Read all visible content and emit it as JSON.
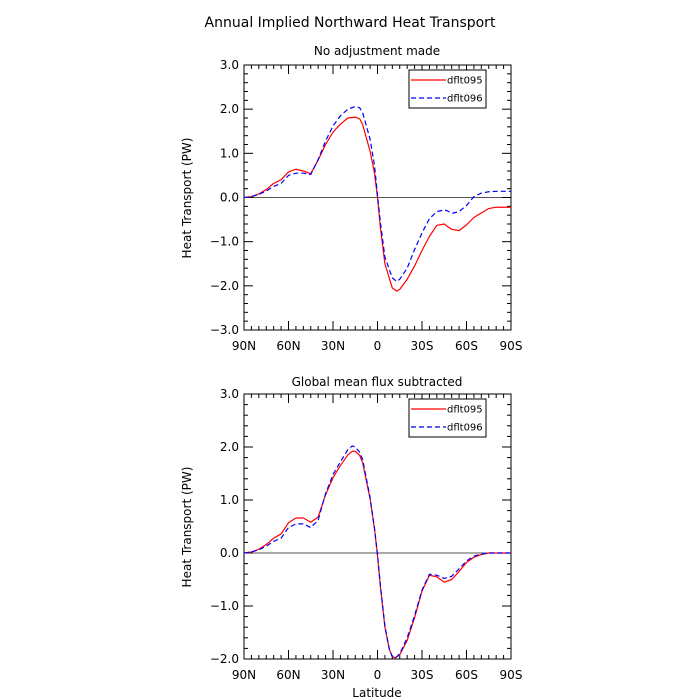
{
  "figure_title": "Annual Implied Northward Heat Transport",
  "x_axis_label": "Latitude",
  "colors": {
    "dflt095": "#ff0000",
    "dflt096": "#0000ff",
    "axis": "#000000",
    "zero_line": "#000000"
  },
  "chart_data": [
    {
      "type": "line",
      "title": "No adjustment made",
      "xlabel": "",
      "ylabel": "Heat Transport (PW)",
      "xlim": [
        90,
        -90
      ],
      "ylim": [
        -3,
        3
      ],
      "xticks": [
        90,
        60,
        30,
        0,
        -30,
        -60,
        -90
      ],
      "xtick_labels": [
        "90N",
        "60N",
        "30N",
        "0",
        "30S",
        "60S",
        "90S"
      ],
      "yticks": [
        3,
        2,
        1,
        0,
        -1,
        -2,
        -3
      ],
      "ytick_labels": [
        "3.0",
        "2.0",
        "1.0",
        "0.0",
        "−1.0",
        "−2.0",
        "−3.0"
      ],
      "legend": {
        "position": "top-right",
        "entries": [
          "dflt095",
          "dflt096"
        ]
      },
      "zero_line": true,
      "series": [
        {
          "name": "dflt095",
          "style": "solid",
          "x": [
            90,
            85,
            80,
            75,
            70,
            65,
            60,
            55,
            50,
            45,
            40,
            35,
            30,
            25,
            20,
            15,
            12,
            10,
            5,
            2,
            0,
            -2,
            -5,
            -10,
            -13,
            -15,
            -20,
            -25,
            -30,
            -35,
            -40,
            -45,
            -47,
            -50,
            -55,
            -60,
            -65,
            -70,
            -75,
            -80,
            -85,
            -90
          ],
          "y": [
            0,
            0.02,
            0.08,
            0.18,
            0.32,
            0.4,
            0.58,
            0.64,
            0.6,
            0.54,
            0.85,
            1.2,
            1.48,
            1.66,
            1.8,
            1.82,
            1.78,
            1.65,
            1.05,
            0.55,
            0.0,
            -0.7,
            -1.5,
            -2.05,
            -2.12,
            -2.08,
            -1.85,
            -1.55,
            -1.2,
            -0.88,
            -0.63,
            -0.6,
            -0.65,
            -0.72,
            -0.75,
            -0.62,
            -0.45,
            -0.35,
            -0.25,
            -0.22,
            -0.22,
            -0.22
          ]
        },
        {
          "name": "dflt096",
          "style": "dashed",
          "x": [
            90,
            85,
            80,
            75,
            70,
            65,
            60,
            55,
            50,
            45,
            40,
            35,
            30,
            25,
            20,
            15,
            12,
            10,
            5,
            2,
            0,
            -2,
            -5,
            -10,
            -13,
            -15,
            -20,
            -25,
            -30,
            -35,
            -40,
            -45,
            -47,
            -50,
            -55,
            -60,
            -65,
            -70,
            -75,
            -80,
            -85,
            -90
          ],
          "y": [
            0,
            0.02,
            0.07,
            0.15,
            0.25,
            0.32,
            0.5,
            0.55,
            0.55,
            0.52,
            0.86,
            1.28,
            1.62,
            1.85,
            2.0,
            2.06,
            2.03,
            1.92,
            1.32,
            0.72,
            0.05,
            -0.58,
            -1.35,
            -1.82,
            -1.9,
            -1.85,
            -1.6,
            -1.18,
            -0.8,
            -0.48,
            -0.32,
            -0.28,
            -0.3,
            -0.36,
            -0.32,
            -0.18,
            0.02,
            0.1,
            0.13,
            0.14,
            0.14,
            0.14
          ]
        }
      ]
    },
    {
      "type": "line",
      "title": "Global mean flux subtracted",
      "xlabel": "Latitude",
      "ylabel": "Heat Transport (PW)",
      "xlim": [
        90,
        -90
      ],
      "ylim": [
        -2,
        3
      ],
      "xticks": [
        90,
        60,
        30,
        0,
        -30,
        -60,
        -90
      ],
      "xtick_labels": [
        "90N",
        "60N",
        "30N",
        "0",
        "30S",
        "60S",
        "90S"
      ],
      "yticks": [
        3,
        2,
        1,
        0,
        -1,
        -2
      ],
      "ytick_labels": [
        "3.0",
        "2.0",
        "1.0",
        "0.0",
        "−1.0",
        "−2.0"
      ],
      "legend": {
        "position": "top-right",
        "entries": [
          "dflt095",
          "dflt096"
        ]
      },
      "zero_line": true,
      "series": [
        {
          "name": "dflt095",
          "style": "solid",
          "x": [
            90,
            85,
            80,
            75,
            70,
            65,
            60,
            55,
            50,
            45,
            40,
            35,
            30,
            25,
            20,
            17,
            15,
            12,
            10,
            5,
            2,
            0,
            -2,
            -5,
            -8,
            -10,
            -12,
            -15,
            -20,
            -25,
            -30,
            -35,
            -40,
            -45,
            -50,
            -55,
            -60,
            -65,
            -70,
            -75,
            -80,
            -85,
            -90
          ],
          "y": [
            0,
            0.02,
            0.07,
            0.16,
            0.28,
            0.36,
            0.57,
            0.66,
            0.66,
            0.58,
            0.68,
            1.1,
            1.42,
            1.65,
            1.85,
            1.92,
            1.92,
            1.84,
            1.7,
            1.02,
            0.45,
            -0.05,
            -0.65,
            -1.4,
            -1.82,
            -1.95,
            -1.98,
            -1.92,
            -1.65,
            -1.22,
            -0.72,
            -0.42,
            -0.45,
            -0.55,
            -0.5,
            -0.35,
            -0.18,
            -0.08,
            -0.03,
            0.0,
            0.0,
            0.0,
            0.0
          ]
        },
        {
          "name": "dflt096",
          "style": "dashed",
          "x": [
            90,
            85,
            80,
            75,
            70,
            65,
            60,
            55,
            50,
            45,
            40,
            35,
            30,
            25,
            20,
            17,
            15,
            12,
            10,
            5,
            2,
            0,
            -2,
            -5,
            -8,
            -10,
            -12,
            -15,
            -20,
            -25,
            -30,
            -35,
            -40,
            -45,
            -50,
            -55,
            -60,
            -65,
            -70,
            -75,
            -80,
            -85,
            -90
          ],
          "y": [
            0,
            0.02,
            0.06,
            0.13,
            0.22,
            0.28,
            0.48,
            0.55,
            0.55,
            0.48,
            0.62,
            1.12,
            1.48,
            1.72,
            1.95,
            2.02,
            2.0,
            1.9,
            1.76,
            1.05,
            0.46,
            -0.03,
            -0.62,
            -1.38,
            -1.82,
            -1.96,
            -1.98,
            -1.9,
            -1.6,
            -1.18,
            -0.7,
            -0.4,
            -0.42,
            -0.48,
            -0.44,
            -0.3,
            -0.15,
            -0.06,
            -0.02,
            0.0,
            0.0,
            0.0,
            0.0
          ]
        }
      ]
    }
  ]
}
